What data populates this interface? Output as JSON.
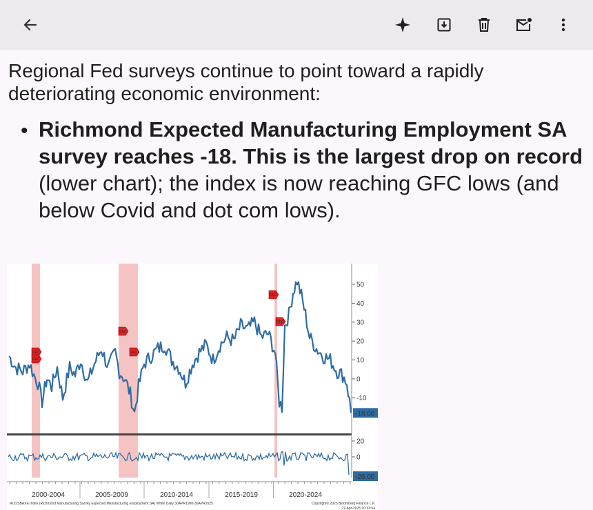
{
  "toolbar": {
    "back_icon": "arrow-back-icon",
    "actions": [
      "sparkle-icon",
      "archive-icon",
      "delete-icon",
      "mark-unread-icon",
      "more-vert-icon"
    ]
  },
  "email": {
    "intro": "Regional Fed surveys continue to point toward a rapidly deteriorating economic environment:",
    "bullet_bold": "Richmond Expected Manufacturing Employment SA survey reaches -18. This is the largest drop on record",
    "bullet_rest": " (lower chart); the index is now reaching GFC lows (and below Covid and dot com lows)."
  },
  "chart_data": {
    "type": "line",
    "x_ticks": [
      "2000-2004",
      "2005-2009",
      "2010-2014",
      "2015-2019",
      "2020-2024"
    ],
    "upper": {
      "y_ticks": [
        "50",
        "40",
        "30",
        "20",
        "10",
        "0",
        "-10"
      ],
      "ylim": [
        -20,
        55
      ],
      "last_value_label": "-18.00",
      "recession_label": "REC"
    },
    "lower": {
      "y_ticks": [
        "20",
        "0"
      ],
      "last_value_label": "-26.00"
    },
    "footer_left": "RCOSBAXE Index (Richmond Manufacturing Survey Expected Manufacturing Employment SA) White Daily 30APR1990-30APR2025",
    "footer_right": "Copyright© 2025 Bloomberg Finance L.P.",
    "footer_date": "27-Apr-2025 10:33:54",
    "series_color": "#2e6ca4",
    "recession_color": "#f5b8b8"
  }
}
